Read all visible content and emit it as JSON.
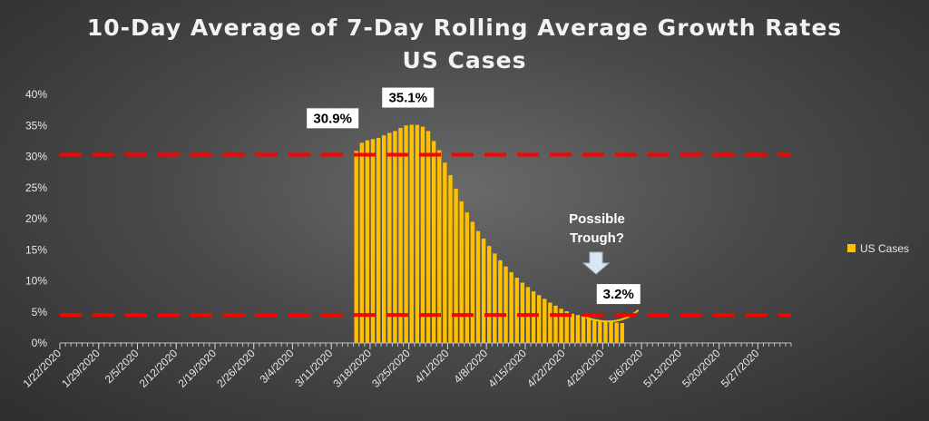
{
  "chart_data": {
    "type": "bar",
    "title": "10-Day Average of 7-Day Rolling Average Growth Rates",
    "subtitle": "US Cases",
    "ylim": [
      0,
      40
    ],
    "y_ticks": [
      "0%",
      "5%",
      "10%",
      "15%",
      "20%",
      "25%",
      "30%",
      "35%",
      "40%"
    ],
    "x_tick_labels": [
      "1/22/2020",
      "1/29/2020",
      "2/5/2020",
      "2/12/2020",
      "2/19/2020",
      "2/26/2020",
      "3/4/2020",
      "3/11/2020",
      "3/18/2020",
      "3/25/2020",
      "4/1/2020",
      "4/8/2020",
      "4/15/2020",
      "4/22/2020",
      "4/29/2020",
      "5/6/2020",
      "5/13/2020",
      "5/20/2020",
      "5/27/2020"
    ],
    "x_start": "1/22/2020",
    "first_bar_date": "3/15/2020",
    "grid": false,
    "legend_position": "right",
    "series": [
      {
        "name": "US Cases",
        "color": "#ffc000",
        "values": [
          30.9,
          32.2,
          32.6,
          32.8,
          33.0,
          33.4,
          33.8,
          34.1,
          34.6,
          35.0,
          35.1,
          35.1,
          34.8,
          34.1,
          32.5,
          31.0,
          29.0,
          27.0,
          24.8,
          22.8,
          21.0,
          19.5,
          18.0,
          16.8,
          15.6,
          14.4,
          13.3,
          12.3,
          11.4,
          10.5,
          9.7,
          9.0,
          8.3,
          7.7,
          7.1,
          6.5,
          6.0,
          5.5,
          5.1,
          4.7,
          4.5,
          4.3,
          4.0,
          3.8,
          3.6,
          3.5,
          3.4,
          3.3,
          3.2
        ]
      }
    ],
    "reference_lines": [
      30.3,
      4.5
    ],
    "reference_line_color": "#ff0000",
    "data_labels": [
      {
        "text": "30.9%",
        "index": 0
      },
      {
        "text": "35.1%",
        "index": 10
      },
      {
        "text": "3.2%",
        "index": 48
      }
    ],
    "annotation": {
      "line1": "Possible",
      "line2": "Trough?"
    },
    "legend_label": "US Cases"
  }
}
